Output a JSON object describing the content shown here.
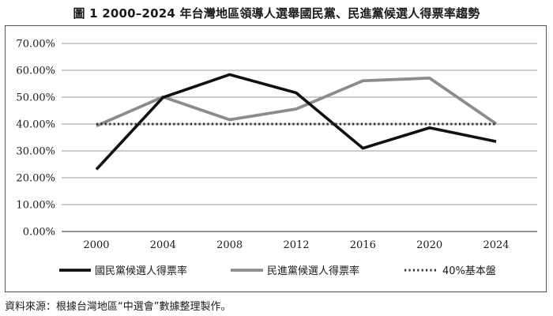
{
  "chart_data": {
    "type": "line",
    "title": "圖 1 2000–2024 年台灣地區領導人選舉國民黨、民進黨候選人得票率趨勢",
    "x": [
      "2000",
      "2004",
      "2008",
      "2012",
      "2016",
      "2020",
      "2024"
    ],
    "yticks": [
      "0.00%",
      "10.00%",
      "20.00%",
      "30.00%",
      "40.00%",
      "50.00%",
      "60.00%",
      "70.00%"
    ],
    "ylim": [
      0,
      70
    ],
    "grid": true,
    "legend_position": "bottom",
    "series": [
      {
        "name": "國民黨候選人得票率",
        "values": [
          23.1,
          49.9,
          58.4,
          51.6,
          31.0,
          38.6,
          33.5
        ],
        "color": "#111111",
        "style": "solid"
      },
      {
        "name": "民進黨候選人得票率",
        "values": [
          39.3,
          50.1,
          41.6,
          45.6,
          56.1,
          57.1,
          40.1
        ],
        "color": "#8c8c8c",
        "style": "solid"
      },
      {
        "name": "40%基本盤",
        "values": [
          40,
          40,
          40,
          40,
          40,
          40,
          40
        ],
        "color": "#333333",
        "style": "dotted"
      }
    ],
    "source_note": "資料來源：根據台灣地區“中選會”數據整理製作。"
  }
}
